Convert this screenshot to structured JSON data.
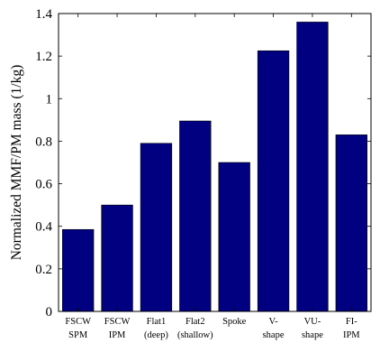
{
  "colors": {
    "bar_fill": "#000080",
    "bar_stroke": "#000000",
    "axis": "#000000",
    "background": "#ffffff"
  },
  "chart_data": {
    "type": "bar",
    "title": "",
    "xlabel": "",
    "ylabel": "Normalized MMF/PM mass (1/kg)",
    "ylim": [
      0,
      1.4
    ],
    "yticks": [
      0,
      0.2,
      0.4,
      0.6,
      0.8,
      1,
      1.2,
      1.4
    ],
    "ytick_labels": [
      "0",
      "0.2",
      "0.4",
      "0.6",
      "0.8",
      "1",
      "1.2",
      "1.4"
    ],
    "grid": false,
    "legend": "none",
    "categories": [
      {
        "line1": "FSCW",
        "line2": "SPM"
      },
      {
        "line1": "FSCW",
        "line2": "IPM"
      },
      {
        "line1": "Flat1",
        "line2": "(deep)"
      },
      {
        "line1": "Flat2",
        "line2": "(shallow)"
      },
      {
        "line1": "Spoke",
        "line2": ""
      },
      {
        "line1": "V-",
        "line2": "shape"
      },
      {
        "line1": "VU-",
        "line2": "shape"
      },
      {
        "line1": "FI-",
        "line2": "IPM"
      }
    ],
    "values": [
      0.385,
      0.5,
      0.79,
      0.895,
      0.7,
      1.225,
      1.36,
      0.83
    ]
  }
}
